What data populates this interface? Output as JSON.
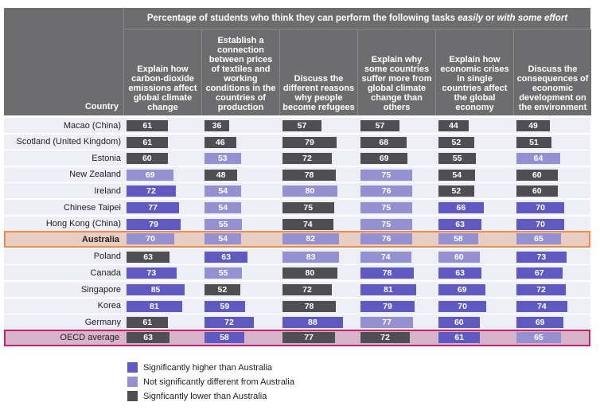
{
  "chart_data": {
    "type": "table",
    "title": "Percentage of students who think they can perform the following tasks easily or with some effort",
    "title_parts": [
      "Percentage of students who think they can perform the following tasks ",
      "easily",
      " or ",
      "with some effort"
    ],
    "row_header": "Country",
    "columns": [
      "Explain how carbon-dioxide emissions affect global climate change",
      "Establish a connection between prices of textiles and working conditions in the countries of production",
      "Discuss the different reasons why people become refugees",
      "Explain why some countries suffer more from global climate change than others",
      "Explain how economic crises in single countries affect the global economy",
      "Discuss the consequences of economic development on the environment"
    ],
    "rows": [
      {
        "country": "Macao (China)",
        "values": [
          61,
          36,
          57,
          57,
          44,
          49
        ],
        "sig": [
          "L",
          "L",
          "L",
          "L",
          "L",
          "L"
        ]
      },
      {
        "country": "Scotland (United Kingdom)",
        "values": [
          61,
          46,
          79,
          68,
          52,
          51
        ],
        "sig": [
          "L",
          "L",
          "L",
          "L",
          "L",
          "L"
        ]
      },
      {
        "country": "Estonia",
        "values": [
          60,
          53,
          72,
          69,
          55,
          64
        ],
        "sig": [
          "L",
          "N",
          "L",
          "L",
          "L",
          "N"
        ]
      },
      {
        "country": "New Zealand",
        "values": [
          69,
          48,
          78,
          75,
          54,
          60
        ],
        "sig": [
          "N",
          "L",
          "L",
          "N",
          "L",
          "L"
        ]
      },
      {
        "country": "Ireland",
        "values": [
          72,
          54,
          80,
          76,
          52,
          60
        ],
        "sig": [
          "H",
          "N",
          "N",
          "N",
          "L",
          "L"
        ]
      },
      {
        "country": "Chinese Taipei",
        "values": [
          77,
          54,
          75,
          75,
          66,
          70
        ],
        "sig": [
          "H",
          "N",
          "L",
          "N",
          "H",
          "H"
        ]
      },
      {
        "country": "Hong Kong (China)",
        "values": [
          79,
          55,
          74,
          75,
          63,
          70
        ],
        "sig": [
          "H",
          "N",
          "L",
          "N",
          "H",
          "H"
        ]
      },
      {
        "country": "Australia",
        "values": [
          70,
          54,
          82,
          76,
          58,
          65
        ],
        "sig": [
          "N",
          "N",
          "N",
          "N",
          "N",
          "N"
        ],
        "highlight": "aus"
      },
      {
        "country": "Poland",
        "values": [
          63,
          63,
          83,
          74,
          60,
          73
        ],
        "sig": [
          "L",
          "H",
          "N",
          "N",
          "N",
          "H"
        ]
      },
      {
        "country": "Canada",
        "values": [
          73,
          55,
          80,
          78,
          63,
          67
        ],
        "sig": [
          "H",
          "N",
          "L",
          "H",
          "H",
          "H"
        ]
      },
      {
        "country": "Singapore",
        "values": [
          85,
          52,
          72,
          81,
          69,
          72
        ],
        "sig": [
          "H",
          "L",
          "L",
          "H",
          "H",
          "H"
        ]
      },
      {
        "country": "Korea",
        "values": [
          81,
          59,
          78,
          79,
          70,
          74
        ],
        "sig": [
          "H",
          "H",
          "L",
          "H",
          "H",
          "H"
        ]
      },
      {
        "country": "Germany",
        "values": [
          61,
          72,
          88,
          77,
          60,
          69
        ],
        "sig": [
          "L",
          "H",
          "H",
          "N",
          "H",
          "H"
        ]
      },
      {
        "country": "OECD average",
        "values": [
          63,
          58,
          77,
          72,
          61,
          65
        ],
        "sig": [
          "L",
          "H",
          "L",
          "L",
          "H",
          "N"
        ],
        "highlight": "oecd"
      }
    ],
    "legend": [
      {
        "code": "H",
        "label": "Significantly higher than Australia",
        "color": "#605ac0"
      },
      {
        "code": "N",
        "label": "Not significantly different from Australia",
        "color": "#9591d0"
      },
      {
        "code": "L",
        "label": "Signficantly lower than Australia",
        "color": "#4e4e53"
      }
    ],
    "xlim": [
      0,
      100
    ]
  }
}
